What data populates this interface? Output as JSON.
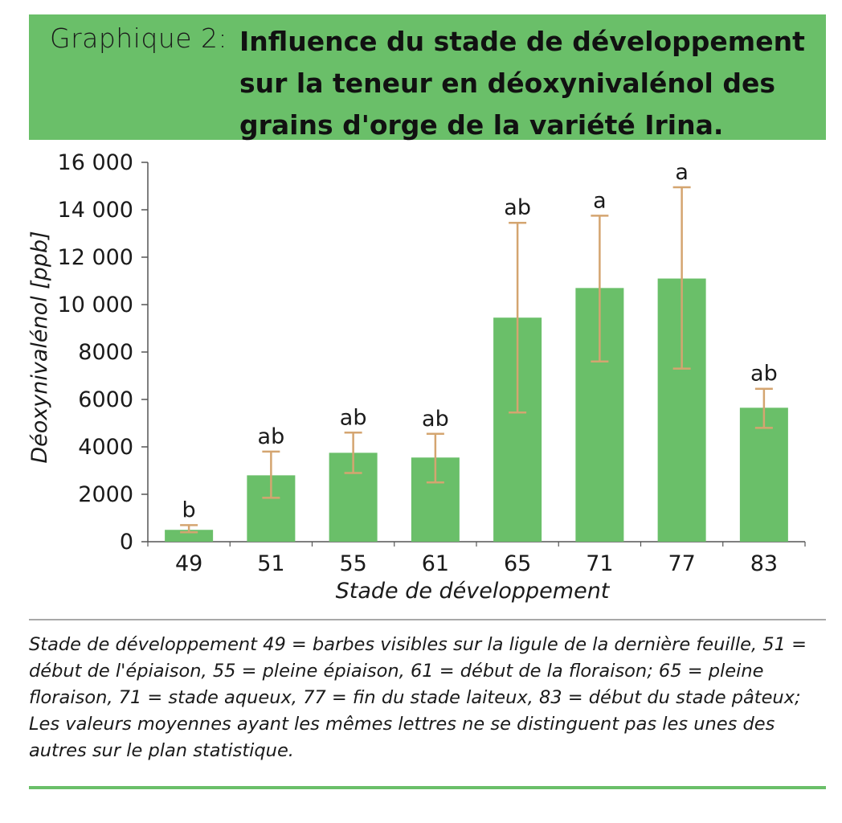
{
  "header": {
    "prefix": "Graphique 2:",
    "title": "Influence du stade de développement sur la teneur en déoxynivalénol des grains d'orge de la variété Irina."
  },
  "chart_data": {
    "type": "bar",
    "title": "Influence du stade de développement sur la teneur en déoxynivalénol des grains d'orge de la variété Irina.",
    "xlabel": "Stade de développement",
    "ylabel": "Déoxynivalénol [ppb]",
    "ylim": [
      0,
      16000
    ],
    "yticks": [
      0,
      2000,
      4000,
      6000,
      8000,
      10000,
      12000,
      14000,
      16000
    ],
    "ytick_labels": [
      "0",
      "2000",
      "4000",
      "6000",
      "8000",
      "10 000",
      "12 000",
      "14 000",
      "16 000"
    ],
    "categories": [
      "49",
      "51",
      "55",
      "61",
      "65",
      "71",
      "77",
      "83"
    ],
    "values": [
      500,
      2800,
      3750,
      3550,
      9450,
      10700,
      11100,
      5650
    ],
    "error_low": [
      400,
      1850,
      2900,
      2500,
      5450,
      7600,
      7300,
      4800
    ],
    "error_high": [
      700,
      3800,
      4600,
      4550,
      13450,
      13750,
      14950,
      6450
    ],
    "significance_letters": [
      "b",
      "ab",
      "ab",
      "ab",
      "ab",
      "a",
      "a",
      "ab"
    ],
    "bar_color": "#6abf69",
    "error_color": "#d4a570",
    "grid": false
  },
  "caption": "Stade de développement 49 = barbes visibles sur la ligule de la dernière feuille, 51 = début de l'épiaison, 55 = pleine épiaison, 61 = début de la floraison; 65 = pleine floraison, 71 = stade aqueux, 77 = fin du stade laiteux, 83 = début du stade pâteux; Les valeurs moyennes ayant les mêmes lettres ne se distinguent pas les unes des autres sur le plan statistique."
}
